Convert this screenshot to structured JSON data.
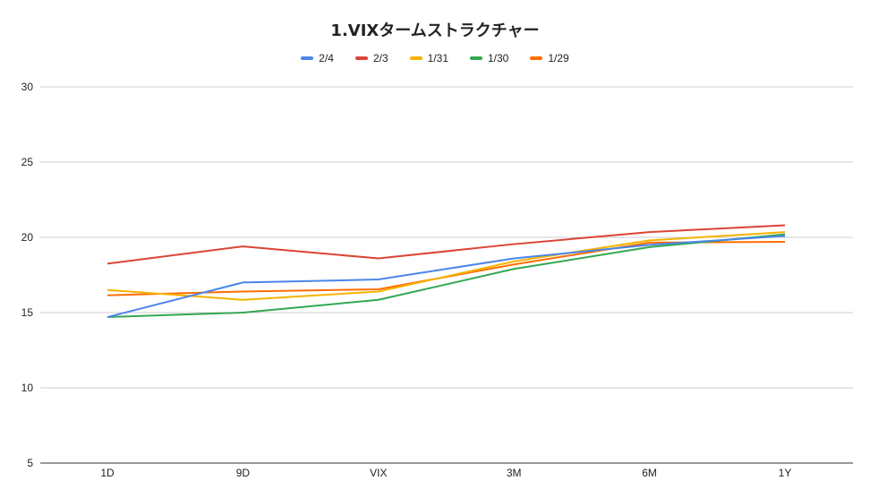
{
  "chart_data": {
    "type": "line",
    "title": "1.VIXタームストラクチャー",
    "xlabel": "",
    "ylabel": "",
    "categories": [
      "1D",
      "9D",
      "VIX",
      "3M",
      "6M",
      "1Y"
    ],
    "ylim": [
      5,
      30
    ],
    "yticks": [
      5,
      10,
      15,
      20,
      25,
      30
    ],
    "grid": true,
    "legend_position": "top",
    "series": [
      {
        "name": "2/4",
        "color": "#4a86e8",
        "values": [
          14.7,
          17.0,
          17.2,
          18.6,
          19.5,
          20.1
        ]
      },
      {
        "name": "2/3",
        "color": "#db4437",
        "values": [
          18.25,
          19.4,
          18.6,
          19.55,
          20.35,
          20.8
        ]
      },
      {
        "name": "1/31",
        "color": "#f4b400",
        "values": [
          16.5,
          15.85,
          16.4,
          18.4,
          19.8,
          20.35
        ]
      },
      {
        "name": "1/30",
        "color": "#34a853",
        "values": [
          14.7,
          15.0,
          15.85,
          17.9,
          19.35,
          20.2
        ]
      },
      {
        "name": "1/29",
        "color": "#ff6d00",
        "values": [
          16.15,
          16.4,
          16.55,
          18.2,
          19.65,
          19.7
        ]
      }
    ]
  }
}
